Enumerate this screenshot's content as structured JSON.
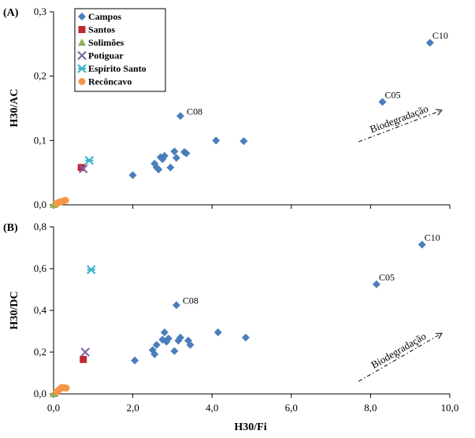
{
  "chart_data": [
    {
      "type": "scatter",
      "panel": "(A)",
      "xlabel": "",
      "ylabel": "H30/AC",
      "xlim": [
        0,
        10
      ],
      "ylim": [
        0,
        0.3
      ],
      "xticks": [
        0,
        2,
        4,
        6,
        8,
        10
      ],
      "xtick_labels": [],
      "yticks": [
        0,
        0.1,
        0.2,
        0.3
      ],
      "ytick_labels": [
        "0,0",
        "0,1",
        "0,2",
        "0,3"
      ],
      "grid": false,
      "legend": {
        "placement": "top-left",
        "entries": [
          "Campos",
          "Santos",
          "Solimões",
          "Potiguar",
          "Espírito Santo",
          "Recôncavo"
        ]
      },
      "annotation": {
        "text": "Biodegradação",
        "from": [
          7.7,
          0.098
        ],
        "to": [
          9.8,
          0.147
        ]
      },
      "series": [
        {
          "name": "Campos",
          "marker": "diamond",
          "color": "#4a7ebb",
          "points": [
            {
              "x": 2.0,
              "y": 0.046
            },
            {
              "x": 2.55,
              "y": 0.064
            },
            {
              "x": 2.6,
              "y": 0.058
            },
            {
              "x": 2.65,
              "y": 0.055
            },
            {
              "x": 2.7,
              "y": 0.074
            },
            {
              "x": 2.75,
              "y": 0.071
            },
            {
              "x": 2.8,
              "y": 0.076
            },
            {
              "x": 2.95,
              "y": 0.058
            },
            {
              "x": 3.05,
              "y": 0.083
            },
            {
              "x": 3.1,
              "y": 0.073
            },
            {
              "x": 3.3,
              "y": 0.082
            },
            {
              "x": 3.35,
              "y": 0.08
            },
            {
              "x": 3.2,
              "y": 0.138,
              "label": "C08"
            },
            {
              "x": 4.1,
              "y": 0.1
            },
            {
              "x": 4.8,
              "y": 0.099
            },
            {
              "x": 8.3,
              "y": 0.16,
              "label": "C05"
            },
            {
              "x": 9.5,
              "y": 0.252,
              "label": "C10"
            }
          ]
        },
        {
          "name": "Santos",
          "marker": "square",
          "color": "#c0282d",
          "points": [
            {
              "x": 0.7,
              "y": 0.058
            }
          ]
        },
        {
          "name": "Solimões",
          "marker": "triangle",
          "color": "#8db359",
          "points": [
            {
              "x": 0.0,
              "y": 0.0
            },
            {
              "x": 0.03,
              "y": 0.001
            }
          ]
        },
        {
          "name": "Potiguar",
          "marker": "x",
          "color": "#7e5ea6",
          "points": [
            {
              "x": 0.75,
              "y": 0.056
            }
          ]
        },
        {
          "name": "Espírito Santo",
          "marker": "star",
          "color": "#3fb4c9",
          "points": [
            {
              "x": 0.9,
              "y": 0.069
            }
          ]
        },
        {
          "name": "Recôncavo",
          "marker": "circle",
          "color": "#f79646",
          "points": [
            {
              "x": 0.08,
              "y": 0.002
            },
            {
              "x": 0.14,
              "y": 0.004
            },
            {
              "x": 0.2,
              "y": 0.005
            },
            {
              "x": 0.25,
              "y": 0.006
            },
            {
              "x": 0.3,
              "y": 0.007
            }
          ]
        }
      ]
    },
    {
      "type": "scatter",
      "panel": "(B)",
      "xlabel": "H30/Fi",
      "ylabel": "H30/DC",
      "xlim": [
        0,
        10
      ],
      "ylim": [
        0,
        0.8
      ],
      "xticks": [
        0,
        2,
        4,
        6,
        8,
        10
      ],
      "xtick_labels": [
        "0,0",
        "2,0",
        "4,0",
        "6,0",
        "8,0",
        "10,0"
      ],
      "yticks": [
        0,
        0.2,
        0.4,
        0.6,
        0.8
      ],
      "ytick_labels": [
        "0,0",
        "0,2",
        "0,4",
        "0,6",
        "0,8"
      ],
      "grid": false,
      "annotation": {
        "text": "Biodegradação",
        "from": [
          7.7,
          0.06
        ],
        "to": [
          9.8,
          0.29
        ]
      },
      "series": [
        {
          "name": "Campos",
          "marker": "diamond",
          "color": "#4a7ebb",
          "points": [
            {
              "x": 2.05,
              "y": 0.16
            },
            {
              "x": 2.5,
              "y": 0.21
            },
            {
              "x": 2.55,
              "y": 0.19
            },
            {
              "x": 2.6,
              "y": 0.235
            },
            {
              "x": 2.75,
              "y": 0.26
            },
            {
              "x": 2.8,
              "y": 0.295
            },
            {
              "x": 2.85,
              "y": 0.25
            },
            {
              "x": 2.9,
              "y": 0.265
            },
            {
              "x": 3.05,
              "y": 0.205
            },
            {
              "x": 3.15,
              "y": 0.255
            },
            {
              "x": 3.2,
              "y": 0.27
            },
            {
              "x": 3.4,
              "y": 0.255
            },
            {
              "x": 3.45,
              "y": 0.235
            },
            {
              "x": 3.1,
              "y": 0.425,
              "label": "C08"
            },
            {
              "x": 4.15,
              "y": 0.295
            },
            {
              "x": 4.85,
              "y": 0.27
            },
            {
              "x": 8.15,
              "y": 0.525,
              "label": "C05"
            },
            {
              "x": 9.3,
              "y": 0.715,
              "label": "C10"
            }
          ]
        },
        {
          "name": "Santos",
          "marker": "square",
          "color": "#c0282d",
          "points": [
            {
              "x": 0.75,
              "y": 0.165
            }
          ]
        },
        {
          "name": "Solimões",
          "marker": "triangle",
          "color": "#8db359",
          "points": [
            {
              "x": 0.0,
              "y": 0.0
            },
            {
              "x": 0.03,
              "y": 0.002
            }
          ]
        },
        {
          "name": "Potiguar",
          "marker": "x",
          "color": "#7e5ea6",
          "points": [
            {
              "x": 0.8,
              "y": 0.2
            }
          ]
        },
        {
          "name": "Espírito Santo",
          "marker": "star",
          "color": "#3fb4c9",
          "points": [
            {
              "x": 0.95,
              "y": 0.595
            }
          ]
        },
        {
          "name": "Recôncavo",
          "marker": "circle",
          "color": "#f79646",
          "points": [
            {
              "x": 0.08,
              "y": 0.01
            },
            {
              "x": 0.14,
              "y": 0.02
            },
            {
              "x": 0.2,
              "y": 0.03
            },
            {
              "x": 0.26,
              "y": 0.03
            },
            {
              "x": 0.32,
              "y": 0.028
            }
          ]
        }
      ]
    }
  ]
}
